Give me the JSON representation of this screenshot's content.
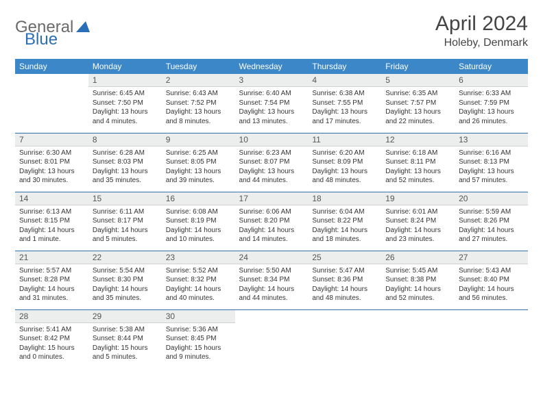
{
  "logo": {
    "general": "General",
    "blue": "Blue"
  },
  "title": "April 2024",
  "location": "Holeby, Denmark",
  "colors": {
    "header_bg": "#3b87c8",
    "header_text": "#ffffff",
    "daynum_bg": "#eceded",
    "divider": "#2f6faa",
    "logo_gray": "#6a6a6a",
    "logo_blue": "#2a6db8"
  },
  "weekdays": [
    "Sunday",
    "Monday",
    "Tuesday",
    "Wednesday",
    "Thursday",
    "Friday",
    "Saturday"
  ],
  "weeks": [
    [
      null,
      {
        "n": "1",
        "sr": "Sunrise: 6:45 AM",
        "ss": "Sunset: 7:50 PM",
        "d1": "Daylight: 13 hours",
        "d2": "and 4 minutes."
      },
      {
        "n": "2",
        "sr": "Sunrise: 6:43 AM",
        "ss": "Sunset: 7:52 PM",
        "d1": "Daylight: 13 hours",
        "d2": "and 8 minutes."
      },
      {
        "n": "3",
        "sr": "Sunrise: 6:40 AM",
        "ss": "Sunset: 7:54 PM",
        "d1": "Daylight: 13 hours",
        "d2": "and 13 minutes."
      },
      {
        "n": "4",
        "sr": "Sunrise: 6:38 AM",
        "ss": "Sunset: 7:55 PM",
        "d1": "Daylight: 13 hours",
        "d2": "and 17 minutes."
      },
      {
        "n": "5",
        "sr": "Sunrise: 6:35 AM",
        "ss": "Sunset: 7:57 PM",
        "d1": "Daylight: 13 hours",
        "d2": "and 22 minutes."
      },
      {
        "n": "6",
        "sr": "Sunrise: 6:33 AM",
        "ss": "Sunset: 7:59 PM",
        "d1": "Daylight: 13 hours",
        "d2": "and 26 minutes."
      }
    ],
    [
      {
        "n": "7",
        "sr": "Sunrise: 6:30 AM",
        "ss": "Sunset: 8:01 PM",
        "d1": "Daylight: 13 hours",
        "d2": "and 30 minutes."
      },
      {
        "n": "8",
        "sr": "Sunrise: 6:28 AM",
        "ss": "Sunset: 8:03 PM",
        "d1": "Daylight: 13 hours",
        "d2": "and 35 minutes."
      },
      {
        "n": "9",
        "sr": "Sunrise: 6:25 AM",
        "ss": "Sunset: 8:05 PM",
        "d1": "Daylight: 13 hours",
        "d2": "and 39 minutes."
      },
      {
        "n": "10",
        "sr": "Sunrise: 6:23 AM",
        "ss": "Sunset: 8:07 PM",
        "d1": "Daylight: 13 hours",
        "d2": "and 44 minutes."
      },
      {
        "n": "11",
        "sr": "Sunrise: 6:20 AM",
        "ss": "Sunset: 8:09 PM",
        "d1": "Daylight: 13 hours",
        "d2": "and 48 minutes."
      },
      {
        "n": "12",
        "sr": "Sunrise: 6:18 AM",
        "ss": "Sunset: 8:11 PM",
        "d1": "Daylight: 13 hours",
        "d2": "and 52 minutes."
      },
      {
        "n": "13",
        "sr": "Sunrise: 6:16 AM",
        "ss": "Sunset: 8:13 PM",
        "d1": "Daylight: 13 hours",
        "d2": "and 57 minutes."
      }
    ],
    [
      {
        "n": "14",
        "sr": "Sunrise: 6:13 AM",
        "ss": "Sunset: 8:15 PM",
        "d1": "Daylight: 14 hours",
        "d2": "and 1 minute."
      },
      {
        "n": "15",
        "sr": "Sunrise: 6:11 AM",
        "ss": "Sunset: 8:17 PM",
        "d1": "Daylight: 14 hours",
        "d2": "and 5 minutes."
      },
      {
        "n": "16",
        "sr": "Sunrise: 6:08 AM",
        "ss": "Sunset: 8:19 PM",
        "d1": "Daylight: 14 hours",
        "d2": "and 10 minutes."
      },
      {
        "n": "17",
        "sr": "Sunrise: 6:06 AM",
        "ss": "Sunset: 8:20 PM",
        "d1": "Daylight: 14 hours",
        "d2": "and 14 minutes."
      },
      {
        "n": "18",
        "sr": "Sunrise: 6:04 AM",
        "ss": "Sunset: 8:22 PM",
        "d1": "Daylight: 14 hours",
        "d2": "and 18 minutes."
      },
      {
        "n": "19",
        "sr": "Sunrise: 6:01 AM",
        "ss": "Sunset: 8:24 PM",
        "d1": "Daylight: 14 hours",
        "d2": "and 23 minutes."
      },
      {
        "n": "20",
        "sr": "Sunrise: 5:59 AM",
        "ss": "Sunset: 8:26 PM",
        "d1": "Daylight: 14 hours",
        "d2": "and 27 minutes."
      }
    ],
    [
      {
        "n": "21",
        "sr": "Sunrise: 5:57 AM",
        "ss": "Sunset: 8:28 PM",
        "d1": "Daylight: 14 hours",
        "d2": "and 31 minutes."
      },
      {
        "n": "22",
        "sr": "Sunrise: 5:54 AM",
        "ss": "Sunset: 8:30 PM",
        "d1": "Daylight: 14 hours",
        "d2": "and 35 minutes."
      },
      {
        "n": "23",
        "sr": "Sunrise: 5:52 AM",
        "ss": "Sunset: 8:32 PM",
        "d1": "Daylight: 14 hours",
        "d2": "and 40 minutes."
      },
      {
        "n": "24",
        "sr": "Sunrise: 5:50 AM",
        "ss": "Sunset: 8:34 PM",
        "d1": "Daylight: 14 hours",
        "d2": "and 44 minutes."
      },
      {
        "n": "25",
        "sr": "Sunrise: 5:47 AM",
        "ss": "Sunset: 8:36 PM",
        "d1": "Daylight: 14 hours",
        "d2": "and 48 minutes."
      },
      {
        "n": "26",
        "sr": "Sunrise: 5:45 AM",
        "ss": "Sunset: 8:38 PM",
        "d1": "Daylight: 14 hours",
        "d2": "and 52 minutes."
      },
      {
        "n": "27",
        "sr": "Sunrise: 5:43 AM",
        "ss": "Sunset: 8:40 PM",
        "d1": "Daylight: 14 hours",
        "d2": "and 56 minutes."
      }
    ],
    [
      {
        "n": "28",
        "sr": "Sunrise: 5:41 AM",
        "ss": "Sunset: 8:42 PM",
        "d1": "Daylight: 15 hours",
        "d2": "and 0 minutes."
      },
      {
        "n": "29",
        "sr": "Sunrise: 5:38 AM",
        "ss": "Sunset: 8:44 PM",
        "d1": "Daylight: 15 hours",
        "d2": "and 5 minutes."
      },
      {
        "n": "30",
        "sr": "Sunrise: 5:36 AM",
        "ss": "Sunset: 8:45 PM",
        "d1": "Daylight: 15 hours",
        "d2": "and 9 minutes."
      },
      null,
      null,
      null,
      null
    ]
  ]
}
